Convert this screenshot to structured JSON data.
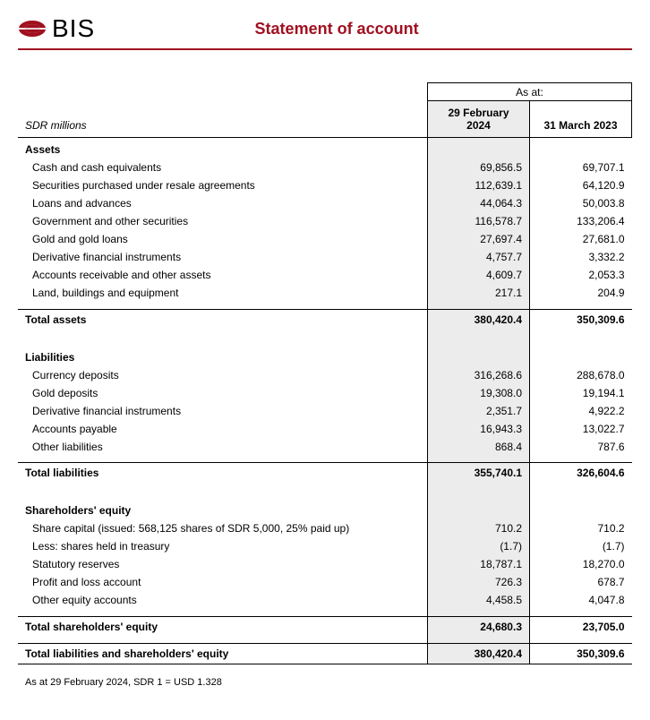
{
  "brand": {
    "name": "BIS",
    "accent": "#a01020"
  },
  "title": "Statement of account",
  "unit_label": "SDR millions",
  "as_at_label": "As at:",
  "columns": {
    "c1": "29 February 2024",
    "c2": "31 March 2023"
  },
  "assets": {
    "heading": "Assets",
    "rows": [
      {
        "label": "Cash and cash equivalents",
        "v1": "69,856.5",
        "v2": "69,707.1"
      },
      {
        "label": "Securities purchased under resale agreements",
        "v1": "112,639.1",
        "v2": "64,120.9"
      },
      {
        "label": "Loans and advances",
        "v1": "44,064.3",
        "v2": "50,003.8"
      },
      {
        "label": "Government and other securities",
        "v1": "116,578.7",
        "v2": "133,206.4"
      },
      {
        "label": "Gold and gold loans",
        "v1": "27,697.4",
        "v2": "27,681.0"
      },
      {
        "label": "Derivative financial instruments",
        "v1": "4,757.7",
        "v2": "3,332.2"
      },
      {
        "label": "Accounts receivable and other assets",
        "v1": "4,609.7",
        "v2": "2,053.3"
      },
      {
        "label": "Land, buildings and equipment",
        "v1": "217.1",
        "v2": "204.9"
      }
    ],
    "total": {
      "label": "Total assets",
      "v1": "380,420.4",
      "v2": "350,309.6"
    }
  },
  "liabilities": {
    "heading": "Liabilities",
    "rows": [
      {
        "label": "Currency deposits",
        "v1": "316,268.6",
        "v2": "288,678.0"
      },
      {
        "label": "Gold deposits",
        "v1": "19,308.0",
        "v2": "19,194.1"
      },
      {
        "label": "Derivative financial instruments",
        "v1": "2,351.7",
        "v2": "4,922.2"
      },
      {
        "label": "Accounts payable",
        "v1": "16,943.3",
        "v2": "13,022.7"
      },
      {
        "label": "Other liabilities",
        "v1": "868.4",
        "v2": "787.6"
      }
    ],
    "total": {
      "label": "Total liabilities",
      "v1": "355,740.1",
      "v2": "326,604.6"
    }
  },
  "equity": {
    "heading": "Shareholders' equity",
    "rows": [
      {
        "label": "Share capital (issued: 568,125 shares of SDR 5,000, 25% paid up)",
        "v1": "710.2",
        "v2": "710.2"
      },
      {
        "label": "Less: shares held in treasury",
        "v1": "(1.7)",
        "v2": "(1.7)"
      },
      {
        "label": "Statutory reserves",
        "v1": "18,787.1",
        "v2": "18,270.0"
      },
      {
        "label": "Profit and loss account",
        "v1": "726.3",
        "v2": "678.7"
      },
      {
        "label": "Other equity accounts",
        "v1": "4,458.5",
        "v2": "4,047.8"
      }
    ],
    "total": {
      "label": "Total shareholders' equity",
      "v1": "24,680.3",
      "v2": "23,705.0"
    }
  },
  "grand_total": {
    "label": "Total liabilities and shareholders' equity",
    "v1": "380,420.4",
    "v2": "350,309.6"
  },
  "footnote": "As at 29 February 2024, SDR 1 = USD 1.328"
}
